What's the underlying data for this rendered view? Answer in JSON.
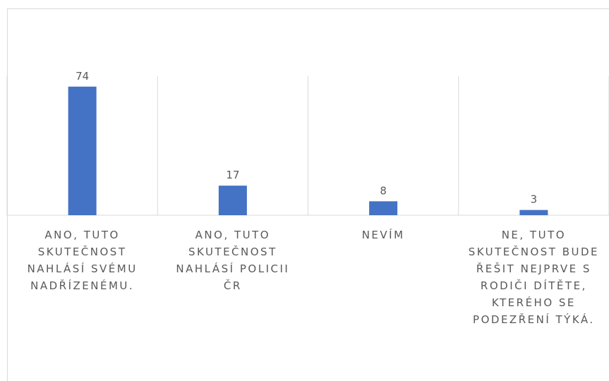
{
  "chart_data": {
    "type": "bar",
    "categories": [
      "ANO, TUTO SKUTEČNOST NAHLÁSÍ SVÉMU NADŘÍZENÉMU.",
      "ANO, TUTO SKUTEČNOST NAHLÁSÍ POLICII ČR",
      "NEVÍM",
      "NE, TUTO SKUTEČNOST BUDE ŘEŠIT NEJPRVE S RODIČI DÍTĚTE, KTERÉHO SE PODEZŘENÍ TÝKÁ."
    ],
    "values": [
      74,
      17,
      8,
      3
    ],
    "color": "#4472c4",
    "ylim": [
      0,
      80
    ]
  }
}
